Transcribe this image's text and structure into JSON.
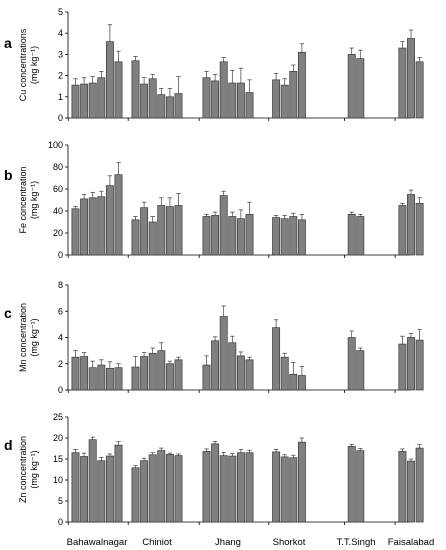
{
  "chart_data": [
    {
      "type": "bar",
      "panel": "a",
      "ylabel": "Cu concentrations",
      "yunit": "(mg kg⁻¹)",
      "ylim": [
        0,
        5
      ],
      "yticks": [
        0,
        1,
        2,
        3,
        4,
        5
      ],
      "categories": [
        "Bahawalnagar",
        "Chiniot",
        "Jhang",
        "Shorkot",
        "T.T.Singh",
        "Faisalabad"
      ],
      "groups": [
        {
          "values": [
            1.55,
            1.6,
            1.65,
            1.9,
            3.6,
            2.65
          ],
          "errors": [
            0.3,
            0.3,
            0.3,
            0.3,
            0.8,
            0.5
          ]
        },
        {
          "values": [
            2.7,
            1.6,
            1.85,
            1.1,
            1.0,
            1.15
          ],
          "errors": [
            0.2,
            0.3,
            0.2,
            0.3,
            0.4,
            0.8
          ]
        },
        {
          "values": [
            1.9,
            1.75,
            2.65,
            1.65,
            1.65,
            1.2
          ],
          "errors": [
            0.3,
            0.3,
            0.2,
            0.6,
            0.7,
            0.6
          ]
        },
        {
          "values": [
            1.8,
            1.55,
            2.2,
            3.1
          ],
          "errors": [
            0.3,
            0.3,
            0.3,
            0.4
          ]
        },
        {
          "values": [
            3.0,
            2.8
          ],
          "errors": [
            0.3,
            0.4
          ]
        },
        {
          "values": [
            3.3,
            3.75,
            2.65
          ],
          "errors": [
            0.3,
            0.4,
            0.2
          ]
        }
      ]
    },
    {
      "type": "bar",
      "panel": "b",
      "ylabel": "Fe concentration",
      "yunit": "(mg kg⁻¹)",
      "ylim": [
        0,
        100
      ],
      "yticks": [
        0,
        20,
        40,
        60,
        80,
        100
      ],
      "categories": [
        "Bahawalnagar",
        "Chiniot",
        "Jhang",
        "Shorkot",
        "T.T.Singh",
        "Faisalabad"
      ],
      "groups": [
        {
          "values": [
            42,
            51,
            52,
            53,
            63,
            73
          ],
          "errors": [
            2,
            4,
            5,
            5,
            9,
            11
          ]
        },
        {
          "values": [
            32,
            43,
            30,
            45,
            44,
            45
          ],
          "errors": [
            3,
            5,
            5,
            7,
            8,
            11
          ]
        },
        {
          "values": [
            35,
            36,
            54,
            35,
            33,
            37
          ],
          "errors": [
            2,
            3,
            4,
            4,
            8,
            11
          ]
        },
        {
          "values": [
            34,
            33,
            35,
            32
          ],
          "errors": [
            2,
            3,
            3,
            5
          ]
        },
        {
          "values": [
            37,
            35
          ],
          "errors": [
            2,
            2
          ]
        },
        {
          "values": [
            45,
            55,
            47
          ],
          "errors": [
            2,
            4,
            5
          ]
        }
      ]
    },
    {
      "type": "bar",
      "panel": "c",
      "ylabel": "Mn concentration",
      "yunit": "(mg kg⁻¹)",
      "ylim": [
        0,
        8
      ],
      "yticks": [
        0,
        2,
        4,
        6,
        8
      ],
      "categories": [
        "Bahawalnagar",
        "Chiniot",
        "Jhang",
        "Shorkot",
        "T.T.Singh",
        "Faisalabad"
      ],
      "groups": [
        {
          "values": [
            2.5,
            2.55,
            1.7,
            1.9,
            1.65,
            1.7
          ],
          "errors": [
            0.5,
            0.3,
            0.5,
            0.4,
            0.5,
            0.3
          ]
        },
        {
          "values": [
            1.75,
            2.55,
            2.8,
            3.0,
            2.0,
            2.3
          ],
          "errors": [
            0.8,
            0.3,
            0.4,
            0.6,
            0.2,
            0.2
          ]
        },
        {
          "values": [
            1.9,
            3.75,
            5.6,
            3.6,
            2.6,
            2.3
          ],
          "errors": [
            0.7,
            0.3,
            0.8,
            0.5,
            0.3,
            0.2
          ]
        },
        {
          "values": [
            4.75,
            2.5,
            1.2,
            1.1
          ],
          "errors": [
            0.6,
            0.3,
            0.9,
            0.7
          ]
        },
        {
          "values": [
            4.0,
            3.0
          ],
          "errors": [
            0.5,
            0.2
          ]
        },
        {
          "values": [
            3.5,
            4.0,
            3.8
          ],
          "errors": [
            0.6,
            0.3,
            0.8
          ]
        }
      ]
    },
    {
      "type": "bar",
      "panel": "d",
      "ylabel": "Zn concentration",
      "yunit": "(mg kg⁻¹)",
      "ylim": [
        0,
        25
      ],
      "yticks": [
        0,
        5,
        10,
        15,
        20,
        25
      ],
      "categories": [
        "Bahawalnagar",
        "Chiniot",
        "Jhang",
        "Shorkot",
        "T.T.Singh",
        "Faisalabad"
      ],
      "groups": [
        {
          "values": [
            16.5,
            15.6,
            19.6,
            14.6,
            15.7,
            18.3
          ],
          "errors": [
            0.8,
            0.8,
            0.6,
            0.8,
            0.5,
            0.8
          ]
        },
        {
          "values": [
            12.9,
            14.6,
            16.0,
            17.0,
            16.1,
            15.8
          ],
          "errors": [
            0.5,
            0.6,
            0.5,
            0.6,
            0.3,
            0.4
          ]
        },
        {
          "values": [
            16.8,
            18.6,
            15.8,
            15.7,
            16.5,
            16.5
          ],
          "errors": [
            0.6,
            0.6,
            0.8,
            0.6,
            0.8,
            0.6
          ]
        },
        {
          "values": [
            16.7,
            15.5,
            15.3,
            19.0
          ],
          "errors": [
            0.6,
            0.5,
            0.6,
            1.0
          ]
        },
        {
          "values": [
            18.0,
            17.0
          ],
          "errors": [
            0.5,
            0.5
          ]
        },
        {
          "values": [
            16.8,
            14.5,
            17.6
          ],
          "errors": [
            0.6,
            0.5,
            0.8
          ]
        }
      ]
    }
  ],
  "style": {
    "bar_fill": "#808080",
    "bar_stroke": "#3a3a3a",
    "axis_color": "#000000"
  }
}
